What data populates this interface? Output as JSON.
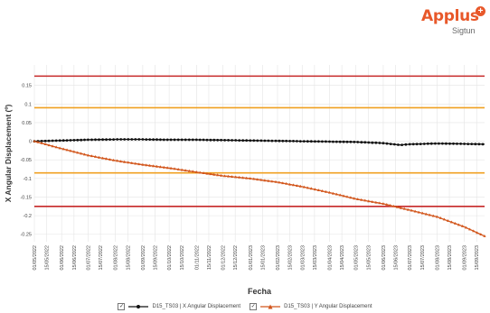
{
  "logo": {
    "word": "Applus",
    "plus_glyph": "+",
    "sub": "Sigtun",
    "word_color": "#e8582a",
    "sub_color": "#6a6a6a"
  },
  "chart_data": {
    "type": "line",
    "title": "",
    "xlabel": "Fecha",
    "ylabel": "X Angular Displacement (º)",
    "ylim": [
      -0.27,
      0.205
    ],
    "yticks": [
      0.15,
      0.1,
      0.05,
      0,
      -0.05,
      -0.1,
      -0.15,
      -0.2,
      -0.25
    ],
    "ytick_labels": [
      "0.15",
      "0.1",
      "0.05",
      "0",
      "-0.05",
      "-0.1",
      "-0.15",
      "-0.2",
      "-0.25"
    ],
    "grid": true,
    "legend_position": "bottom",
    "x_tick_labels": [
      "01/05/2022",
      "15/05/2022",
      "01/06/2022",
      "15/06/2022",
      "01/07/2022",
      "15/07/2022",
      "01/08/2022",
      "15/08/2022",
      "01/09/2022",
      "15/09/2022",
      "01/10/2022",
      "15/10/2022",
      "01/11/2022",
      "15/11/2022",
      "01/12/2022",
      "15/12/2022",
      "01/01/2023",
      "15/01/2023",
      "01/02/2023",
      "15/02/2023",
      "01/03/2023",
      "15/03/2023",
      "01/04/2023",
      "15/04/2023",
      "01/05/2023",
      "15/05/2023",
      "01/06/2023",
      "15/06/2023",
      "01/07/2023",
      "15/07/2023",
      "01/08/2023",
      "15/08/2023",
      "01/09/2023",
      "15/09/2023"
    ],
    "x_range": [
      "2022-05-01",
      "2023-09-24"
    ],
    "thresholds": [
      {
        "value": 0.175,
        "color": "#c62828"
      },
      {
        "value": 0.09,
        "color": "#f0a020"
      },
      {
        "value": -0.085,
        "color": "#f0a020"
      },
      {
        "value": -0.175,
        "color": "#c62828"
      }
    ],
    "series": [
      {
        "name": "D15_TS03 | X Angular Displacement",
        "color": "#111111",
        "marker": "circle",
        "points": [
          [
            "2022-05-01",
            0.0
          ],
          [
            "2022-06-01",
            0.002
          ],
          [
            "2022-07-01",
            0.004
          ],
          [
            "2022-08-01",
            0.005
          ],
          [
            "2022-09-01",
            0.005
          ],
          [
            "2022-10-01",
            0.004
          ],
          [
            "2022-11-01",
            0.004
          ],
          [
            "2022-12-01",
            0.003
          ],
          [
            "2023-01-01",
            0.002
          ],
          [
            "2023-02-01",
            0.001
          ],
          [
            "2023-03-01",
            0.0
          ],
          [
            "2023-04-01",
            -0.001
          ],
          [
            "2023-05-01",
            -0.002
          ],
          [
            "2023-06-01",
            -0.005
          ],
          [
            "2023-06-20",
            -0.01
          ],
          [
            "2023-07-01",
            -0.008
          ],
          [
            "2023-08-01",
            -0.006
          ],
          [
            "2023-09-01",
            -0.007
          ],
          [
            "2023-09-24",
            -0.008
          ]
        ]
      },
      {
        "name": "D15_TS03 | Y Angular Displacement",
        "color": "#d2561c",
        "marker": "triangle",
        "points": [
          [
            "2022-05-01",
            0.0
          ],
          [
            "2022-06-01",
            -0.02
          ],
          [
            "2022-07-01",
            -0.038
          ],
          [
            "2022-08-01",
            -0.052
          ],
          [
            "2022-09-01",
            -0.063
          ],
          [
            "2022-10-01",
            -0.072
          ],
          [
            "2022-11-01",
            -0.083
          ],
          [
            "2022-12-01",
            -0.093
          ],
          [
            "2023-01-01",
            -0.1
          ],
          [
            "2023-02-01",
            -0.11
          ],
          [
            "2023-03-01",
            -0.122
          ],
          [
            "2023-04-01",
            -0.138
          ],
          [
            "2023-05-01",
            -0.155
          ],
          [
            "2023-06-01",
            -0.168
          ],
          [
            "2023-07-01",
            -0.185
          ],
          [
            "2023-08-01",
            -0.203
          ],
          [
            "2023-09-01",
            -0.23
          ],
          [
            "2023-09-24",
            -0.255
          ]
        ]
      }
    ]
  },
  "legend": {
    "check_glyph": "✓",
    "items": [
      {
        "label": "D15_TS03 | X Angular Displacement"
      },
      {
        "label": "D15_TS03 | Y Angular Displacement"
      }
    ]
  }
}
